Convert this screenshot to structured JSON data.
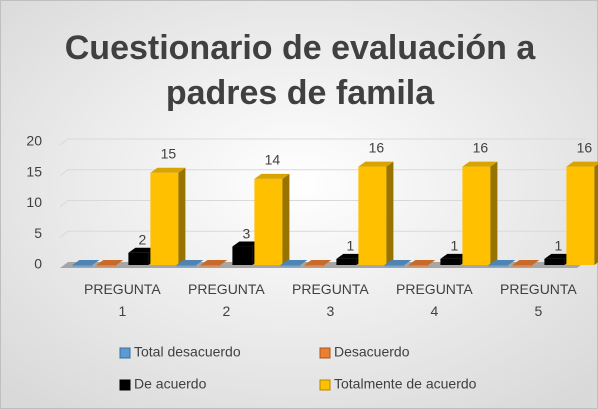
{
  "chart_data": {
    "type": "bar3d",
    "title": "Cuestionario de evaluación a padres de famila",
    "categories": [
      "PREGUNTA 1",
      "PREGUNTA 2",
      "PREGUNTA 3",
      "PREGUNTA 4",
      "PREGUNTA 5"
    ],
    "series": [
      {
        "name": "Total desacuerdo",
        "color": "#5b9bd5",
        "values": [
          0,
          0,
          0,
          0,
          0
        ]
      },
      {
        "name": "Desacuerdo",
        "color": "#ed7d31",
        "values": [
          0,
          0,
          0,
          0,
          0
        ]
      },
      {
        "name": "De acuerdo",
        "color": "#000000",
        "values": [
          2,
          3,
          1,
          1,
          1
        ]
      },
      {
        "name": "Totalmente de acuerdo",
        "color": "#ffc000",
        "values": [
          15,
          14,
          16,
          16,
          16
        ]
      }
    ],
    "ylim": [
      0,
      20
    ],
    "yticks": [
      0,
      5,
      10,
      15,
      20
    ],
    "grid": true,
    "legend": "bottom"
  }
}
